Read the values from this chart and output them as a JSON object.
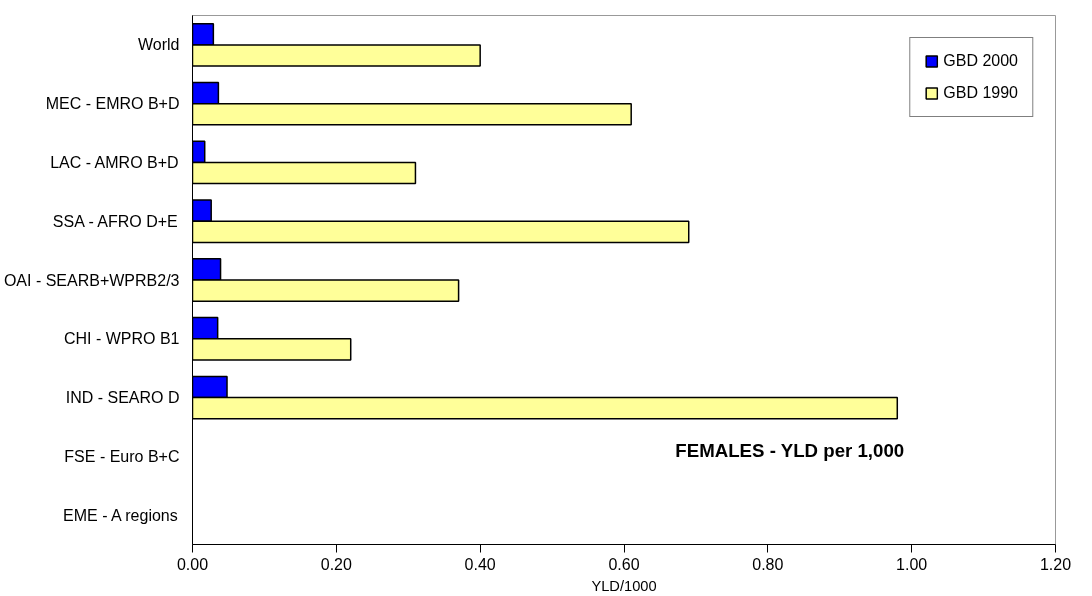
{
  "chart_data": {
    "type": "bar",
    "orientation": "horizontal",
    "xlabel": "YLD/1000",
    "categories": [
      "World",
      "MEC - EMRO B+D",
      "LAC - AMRO B+D",
      "SSA - AFRO D+E",
      "OAI - SEARB+WPRB2/3",
      "CHI - WPRO B1",
      "IND - SEARO D",
      "FSE - Euro B+C",
      "EME - A regions"
    ],
    "series": [
      {
        "name": "GBD 2000",
        "color": "#0000ff",
        "values": [
          0.029,
          0.036,
          0.017,
          0.026,
          0.039,
          0.035,
          0.048,
          null,
          null
        ]
      },
      {
        "name": "GBD 1990",
        "color": "#ffff99",
        "values": [
          0.4,
          0.61,
          0.31,
          0.69,
          0.37,
          0.22,
          0.98,
          null,
          null
        ]
      }
    ],
    "xlim": [
      0,
      1.2
    ],
    "xticks": [
      {
        "value": 0,
        "label": "0.00"
      },
      {
        "value": 0.2,
        "label": "0.20"
      },
      {
        "value": 0.4,
        "label": "0.40"
      },
      {
        "value": 0.6,
        "label": "0.60"
      },
      {
        "value": 0.8,
        "label": "0.80"
      },
      {
        "value": 1.0,
        "label": "1.00"
      },
      {
        "value": 1.2,
        "label": "1.20"
      }
    ],
    "annotations": [
      "FEMALES - YLD per 1,000"
    ],
    "legend": "top right",
    "grid": false
  }
}
